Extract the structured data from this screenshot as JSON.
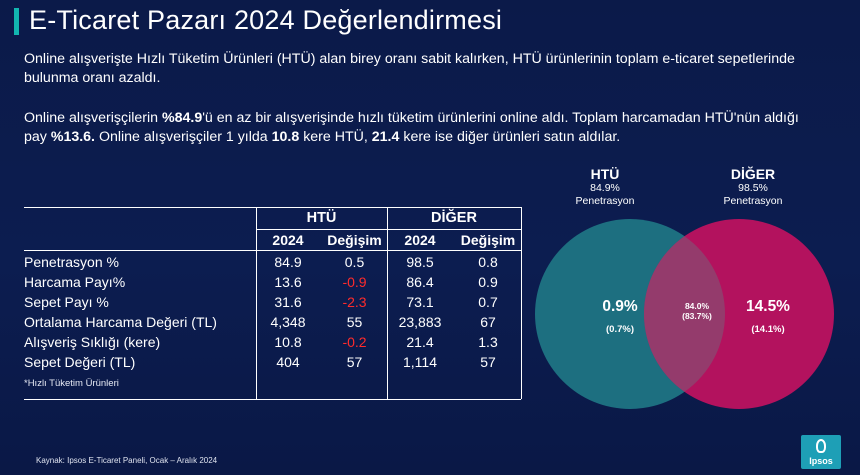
{
  "title": "E-Ticaret Pazarı 2024 Değerlendirmesi",
  "paragraph1": "Online alışverişte Hızlı Tüketim Ürünleri (HTÜ) alan birey oranı sabit kalırken, HTÜ ürünlerinin toplam e-ticaret sepetlerinde bulunma oranı azaldı.",
  "paragraph2": {
    "t1": "Online alışverişçilerin ",
    "b1": "%84.9",
    "t2": "'ü en az bir alışverişinde hızlı tüketim ürünlerini online aldı. Toplam harcamadan HTÜ'nün aldığı pay ",
    "b2": "%13.6.",
    "t3": " Online alışverişçiler 1 yılda ",
    "b3": "10.8",
    "t4": " kere HTÜ, ",
    "b4": "21.4",
    "t5": " kere ise diğer ürünleri satın aldılar."
  },
  "table": {
    "group_htu": "HTÜ",
    "group_diger": "DİĞER",
    "col_year": "2024",
    "col_change": "Değişim",
    "rows": [
      {
        "label": "Penetrasyon %",
        "htu": "84.9",
        "htu_change": "0.5",
        "diger": "98.5",
        "diger_change": "0.8",
        "neg": false
      },
      {
        "label": "Harcama Payı%",
        "htu": "13.6",
        "htu_change": "-0.9",
        "diger": "86.4",
        "diger_change": "0.9",
        "neg": true
      },
      {
        "label": "Sepet Payı %",
        "htu": "31.6",
        "htu_change": "-2.3",
        "diger": "73.1",
        "diger_change": "0.7",
        "neg": true
      },
      {
        "label": "Ortalama Harcama Değeri (TL)",
        "htu": "4,348",
        "htu_change": "55",
        "diger": "23,883",
        "diger_change": "67",
        "neg": false
      },
      {
        "label": "Alışveriş Sıklığı (kere)",
        "htu": "10.8",
        "htu_change": "-0.2",
        "diger": "21.4",
        "diger_change": "1.3",
        "neg": true
      },
      {
        "label": "Sepet Değeri (TL)",
        "htu": "404",
        "htu_change": "57",
        "diger": "1,114",
        "diger_change": "57",
        "neg": false
      }
    ],
    "footnote": "*Hızlı Tüketim Ürünleri"
  },
  "venn": {
    "left_title": "HTÜ",
    "left_value": "84.9%",
    "left_sub": "Penetrasyon",
    "right_title": "DİĞER",
    "right_value": "98.5%",
    "right_sub": "Penetrasyon",
    "left_only": "0.9%",
    "left_only_prev": "(0.7%)",
    "overlap": "84.0%",
    "overlap_prev": "(83.7%)",
    "right_only": "14.5%",
    "right_only_prev": "(14.1%)",
    "color_left": "#1d6f80",
    "color_right": "#b3125e"
  },
  "source": "Kaynak: Ipsos E-Ticaret Paneli, Ocak – Aralık 2024",
  "logo_text": "Ipsos"
}
